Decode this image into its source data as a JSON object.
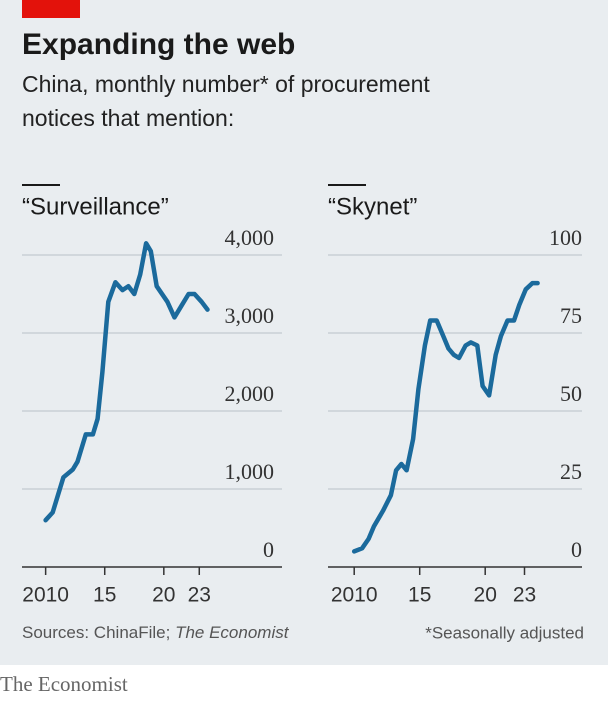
{
  "title": "Expanding the web",
  "subtitle": [
    "China, monthly number* of procurement",
    "notices that mention:"
  ],
  "chart_data": [
    {
      "type": "line",
      "title": "“Surveillance”",
      "color": "#1b6a9c",
      "x": [
        2010,
        2010.6,
        2011.5,
        2012.3,
        2012.7,
        2013.4,
        2014.0,
        2014.4,
        2014.8,
        2015.3,
        2015.9,
        2016.5,
        2017.0,
        2017.5,
        2018.0,
        2018.5,
        2018.9,
        2019.4,
        2020.3,
        2020.9,
        2021.5,
        2022.1,
        2022.6,
        2023.2,
        2023.7
      ],
      "values": [
        600,
        700,
        1150,
        1250,
        1350,
        1700,
        1700,
        1900,
        2500,
        3400,
        3650,
        3550,
        3600,
        3500,
        3750,
        4150,
        4050,
        3600,
        3400,
        3200,
        3350,
        3500,
        3500,
        3400,
        3300
      ],
      "xlim": [
        2008,
        2030
      ],
      "xticks": [
        2010,
        {
          "value": 2015,
          "label": "15"
        },
        {
          "value": 2020,
          "label": "20"
        },
        {
          "value": 2023,
          "label": "23"
        }
      ],
      "ylim": [
        0,
        4000
      ],
      "yticks": [
        0,
        {
          "value": 1000,
          "label": "1,000"
        },
        {
          "value": 2000,
          "label": "2,000"
        },
        {
          "value": 3000,
          "label": "3,000"
        },
        {
          "value": 4000,
          "label": "4,000"
        }
      ],
      "grid": true
    },
    {
      "type": "line",
      "title": "“Skynet”",
      "color": "#1b6a9c",
      "x": [
        2010,
        2010.6,
        2011.1,
        2011.5,
        2012.2,
        2012.8,
        2013.2,
        2013.6,
        2014.0,
        2014.5,
        2014.9,
        2015.4,
        2015.8,
        2016.3,
        2016.8,
        2017.2,
        2017.6,
        2018.0,
        2018.5,
        2018.9,
        2019.4,
        2019.8,
        2020.3,
        2020.8,
        2021.2,
        2021.7,
        2022.2,
        2022.6,
        2023.1,
        2023.6,
        2024.0
      ],
      "values": [
        5,
        6,
        9,
        13,
        18,
        23,
        31,
        33,
        31,
        41,
        57,
        71,
        79,
        79,
        74,
        70,
        68,
        67,
        71,
        72,
        71,
        58,
        55,
        68,
        74,
        79,
        79,
        84,
        89,
        91,
        91
      ],
      "xlim": [
        2008,
        2028
      ],
      "xticks": [
        2010,
        {
          "value": 2015,
          "label": "15"
        },
        {
          "value": 2020,
          "label": "20"
        },
        {
          "value": 2023,
          "label": "23"
        }
      ],
      "ylim": [
        0,
        100
      ],
      "yticks": [
        0,
        25,
        50,
        75,
        100
      ],
      "grid": true
    }
  ],
  "footer": {
    "source": "Sources: ChinaFile;",
    "source_italic": "The Economist",
    "note": "*Seasonally adjusted"
  },
  "brand": "The Economist"
}
